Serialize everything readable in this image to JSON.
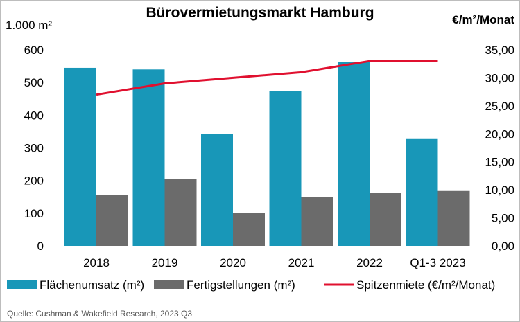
{
  "chart_data": {
    "type": "bar+line",
    "title": "Bürovermietungsmarkt Hamburg",
    "categories": [
      "2018",
      "2019",
      "2020",
      "2021",
      "2022",
      "Q1-3 2023"
    ],
    "series": [
      {
        "name": "Flächenumsatz (m²)",
        "type": "bar",
        "axis": "left",
        "color": "#1897b8",
        "values": [
          545,
          540,
          343,
          474,
          563,
          327
        ]
      },
      {
        "name": "Fertigstellungen (m²)",
        "type": "bar",
        "axis": "left",
        "color": "#6b6b6b",
        "values": [
          155,
          204,
          100,
          150,
          162,
          168
        ]
      },
      {
        "name": "Spitzenmiete (€/m²/Monat)",
        "type": "line",
        "axis": "right",
        "color": "#e0102f",
        "values": [
          27.0,
          29.0,
          30.0,
          31.0,
          33.0,
          33.0
        ]
      }
    ],
    "left_axis": {
      "unit_label": "1.000 m²",
      "ylim": [
        0,
        600
      ],
      "ticks": [
        "0",
        "100",
        "200",
        "300",
        "400",
        "500",
        "600"
      ]
    },
    "right_axis": {
      "unit_label": "€/m²/Monat",
      "ylim": [
        0,
        35
      ],
      "ticks": [
        "0,00",
        "5,00",
        "10,00",
        "15,00",
        "20,00",
        "25,00",
        "30,00",
        "35,00"
      ]
    },
    "grid": false,
    "legend": "bottom",
    "source": "Quelle: Cushman & Wakefield Research, 2023 Q3"
  }
}
